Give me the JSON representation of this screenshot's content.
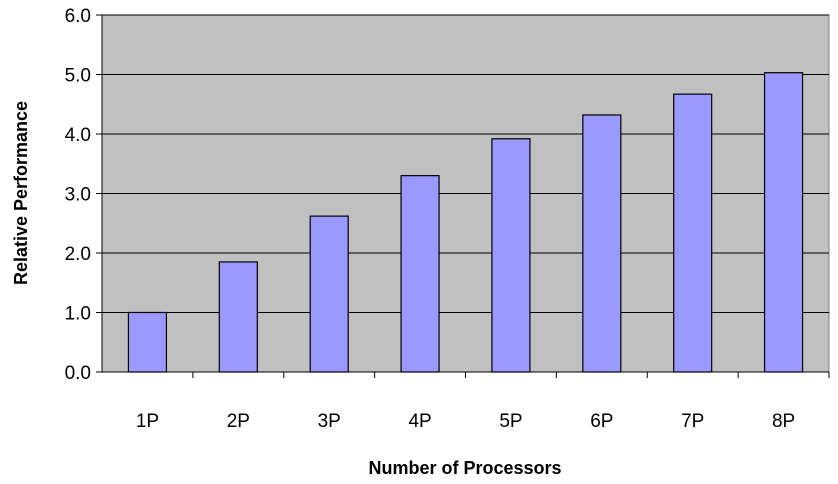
{
  "chart_data": {
    "type": "bar",
    "title": "",
    "xlabel": "Number of Processors",
    "ylabel": "Relative Performance",
    "categories": [
      "1P",
      "2P",
      "3P",
      "4P",
      "5P",
      "6P",
      "7P",
      "8P"
    ],
    "values": [
      1.0,
      1.85,
      2.62,
      3.3,
      3.92,
      4.32,
      4.67,
      5.03
    ],
    "ylim": [
      0,
      6
    ],
    "yticks": [
      "0.0",
      "1.0",
      "2.0",
      "3.0",
      "4.0",
      "5.0",
      "6.0"
    ],
    "grid": true,
    "legend": "none",
    "colors": {
      "plot_background": "#c0c0c0",
      "bar_fill": "#9999ff",
      "bar_stroke": "#000000",
      "gridline": "#000000"
    }
  }
}
